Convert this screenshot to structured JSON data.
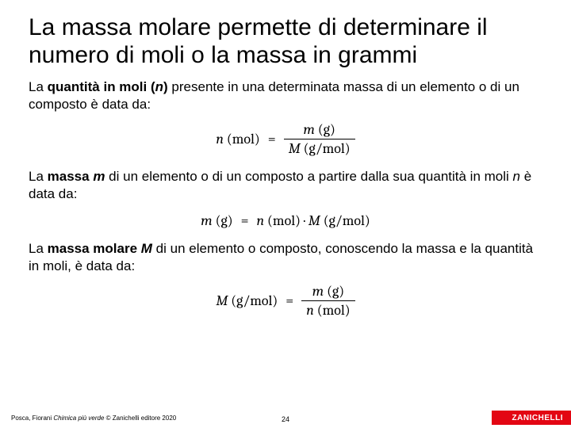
{
  "title": "La massa molare permette di determinare il numero di moli o la massa in grammi",
  "para1_pre": "La ",
  "para1_bold": "quantità in moli (",
  "para1_bolditalic": "n",
  "para1_boldclose": ")",
  "para1_post": " presente in una determinata massa di un elemento o di un composto è data da:",
  "formula1": {
    "lhs_var": "n",
    "lhs_unit": " (mol)",
    "num_var": "m",
    "num_unit": " (g)",
    "den_var": "M",
    "den_unit": " (g/mol)"
  },
  "para2_pre": "La ",
  "para2_b1": "massa ",
  "para2_bi1": "m",
  "para2_mid": " di un elemento o di un composto a partire dalla sua quantità in moli ",
  "para2_i2": "n",
  "para2_post": " è data da:",
  "formula2": {
    "lhs_var": "m",
    "lhs_unit": " (g)",
    "rhs1_var": "n",
    "rhs1_unit": " (mol)",
    "dot": " · ",
    "rhs2_var": "M",
    "rhs2_unit": " (g/mol)"
  },
  "para3_pre": "La ",
  "para3_b1": "massa molare ",
  "para3_bi1": "M",
  "para3_post": " di un elemento o composto, conoscendo la massa e la quantità in moli, è data da:",
  "formula3": {
    "lhs_var": "M",
    "lhs_unit": " (g/mol)",
    "num_var": "m",
    "num_unit": " (g)",
    "den_var": "n",
    "den_unit": " (mol)"
  },
  "footer_left_a": "Posca, Fiorani ",
  "footer_left_b": "Chimica più verde",
  "footer_left_c": " © Zanichelli editore 2020",
  "page_num": "24",
  "publisher": "ZANICHELLI"
}
